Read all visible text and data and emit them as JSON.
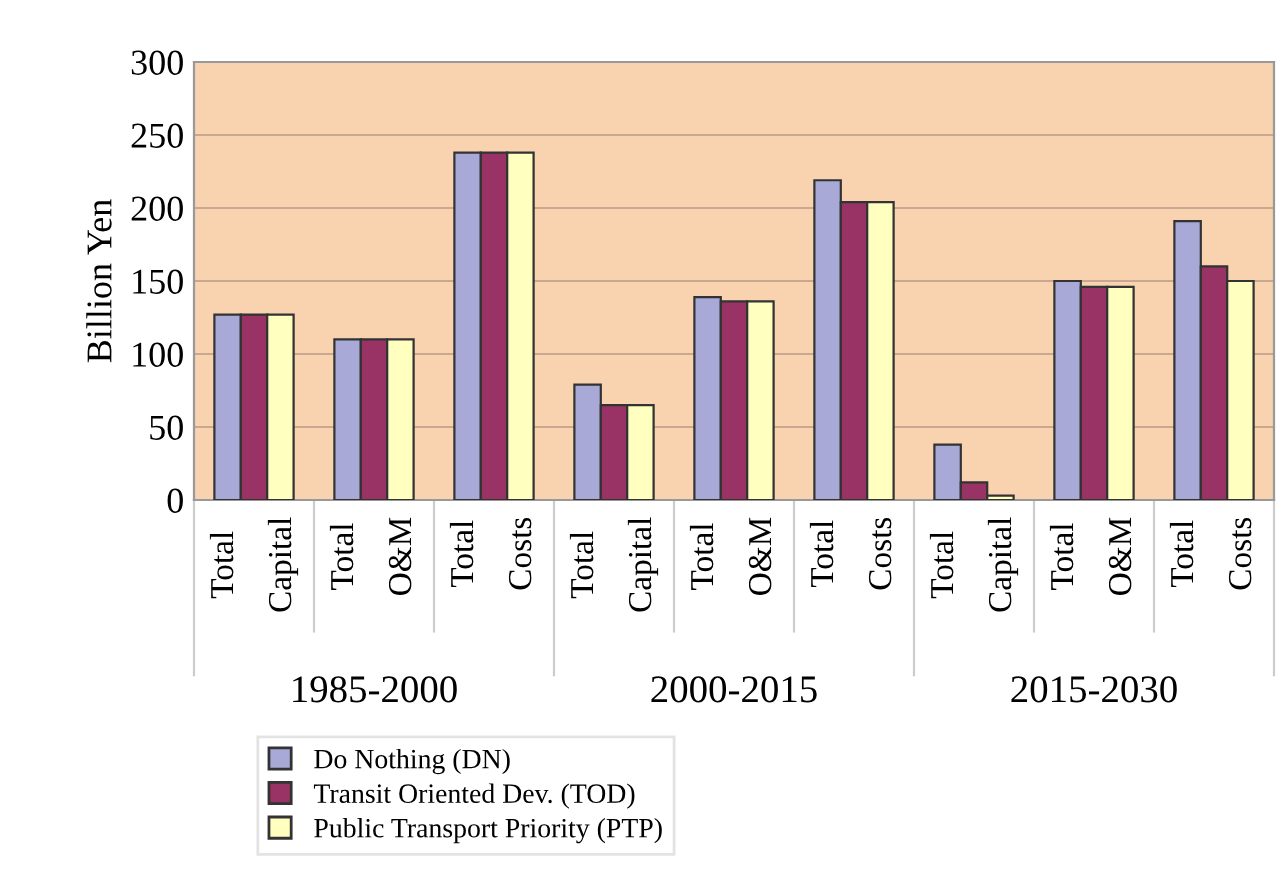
{
  "chart_data": {
    "type": "bar",
    "ylabel": "Billion Yen",
    "categories": [
      "Total\nCapital",
      "Total\nO&M",
      "Total\nCosts",
      "Total\nCapital",
      "Total\nO&M",
      "Total\nCosts",
      "Total\nCapital",
      "Total\nO&M",
      "Total\nCosts"
    ],
    "series": [
      {
        "name": "Do Nothing (DN)",
        "color": "#a9a9d8",
        "values": [
          127,
          110,
          238,
          79,
          139,
          219,
          38,
          150,
          191
        ]
      },
      {
        "name": "Transit Oriented Dev. (TOD)",
        "color": "#993366",
        "values": [
          127,
          110,
          238,
          65,
          136,
          204,
          12,
          146,
          160
        ]
      },
      {
        "name": "Public Transport Priority (PTP)",
        "color": "#ffffc0",
        "values": [
          127,
          110,
          238,
          65,
          136,
          204,
          3,
          146,
          150
        ]
      }
    ],
    "annotations": [
      "1985-2000",
      "2000-2015",
      "2015-2030"
    ],
    "ylim": [
      0,
      300
    ],
    "yticks": [
      0,
      50,
      100,
      150,
      200,
      250,
      300
    ],
    "grid": "y",
    "legend": "bottom left"
  }
}
